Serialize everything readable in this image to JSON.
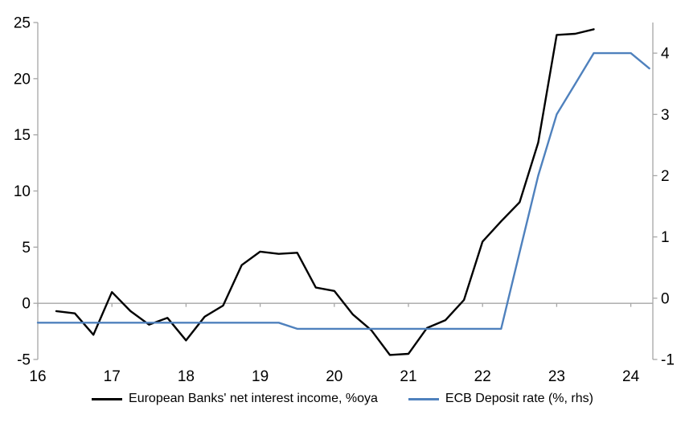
{
  "chart_data": {
    "type": "line",
    "title": "",
    "legend_position": "bottom-center",
    "grid": "zero-line-only",
    "background_color": "#ffffff",
    "axis_color": "#a6a6a6",
    "x_axis": {
      "tick_values": [
        16,
        17,
        18,
        19,
        20,
        21,
        22,
        23,
        24
      ],
      "tick_labels": [
        "16",
        "17",
        "18",
        "19",
        "20",
        "21",
        "22",
        "23",
        "24"
      ],
      "range": [
        16,
        24.32
      ]
    },
    "left_axis": {
      "tick_values": [
        -5,
        0,
        5,
        10,
        15,
        20,
        25
      ],
      "tick_labels": [
        "-5",
        "0",
        "5",
        "10",
        "15",
        "20",
        "25"
      ],
      "range": [
        -5,
        25
      ]
    },
    "right_axis": {
      "tick_values": [
        -1,
        0,
        1,
        2,
        3,
        4
      ],
      "tick_labels": [
        "-1",
        "0",
        "1",
        "2",
        "3",
        "4"
      ],
      "range": [
        -1,
        4.5
      ]
    },
    "series": [
      {
        "name": "European Banks' net interest income, %oya",
        "axis": "left",
        "color": "#000000",
        "x": [
          16.25,
          16.5,
          16.75,
          17.0,
          17.25,
          17.5,
          17.75,
          18.0,
          18.25,
          18.5,
          18.75,
          19.0,
          19.25,
          19.5,
          19.75,
          20.0,
          20.25,
          20.5,
          20.75,
          21.0,
          21.25,
          21.5,
          21.75,
          22.0,
          22.25,
          22.5,
          22.75,
          23.0,
          23.25,
          23.5
        ],
        "values": [
          -0.7,
          -0.9,
          -2.8,
          1.0,
          -0.7,
          -1.9,
          -1.3,
          -3.3,
          -1.2,
          -0.2,
          3.4,
          4.6,
          4.4,
          4.5,
          1.4,
          1.1,
          -1.0,
          -2.4,
          -4.6,
          -4.5,
          -2.2,
          -1.5,
          0.3,
          5.5,
          7.3,
          9.0,
          14.3,
          23.9,
          24.0,
          24.4
        ]
      },
      {
        "name": "ECB Deposit rate (%, rhs)",
        "axis": "right",
        "color": "#4f81bd",
        "x": [
          16.0,
          16.25,
          16.5,
          16.75,
          17.0,
          17.25,
          17.5,
          17.75,
          18.0,
          18.25,
          18.5,
          18.75,
          19.0,
          19.25,
          19.5,
          19.75,
          20.0,
          20.25,
          20.5,
          20.75,
          21.0,
          21.25,
          21.5,
          21.75,
          22.0,
          22.25,
          22.5,
          22.75,
          23.0,
          23.25,
          23.5,
          23.75,
          24.0,
          24.25
        ],
        "values": [
          -0.4,
          -0.4,
          -0.4,
          -0.4,
          -0.4,
          -0.4,
          -0.4,
          -0.4,
          -0.4,
          -0.4,
          -0.4,
          -0.4,
          -0.4,
          -0.4,
          -0.5,
          -0.5,
          -0.5,
          -0.5,
          -0.5,
          -0.5,
          -0.5,
          -0.5,
          -0.5,
          -0.5,
          -0.5,
          -0.5,
          0.75,
          2.0,
          3.0,
          3.5,
          4.0,
          4.0,
          4.0,
          3.75
        ]
      }
    ]
  }
}
